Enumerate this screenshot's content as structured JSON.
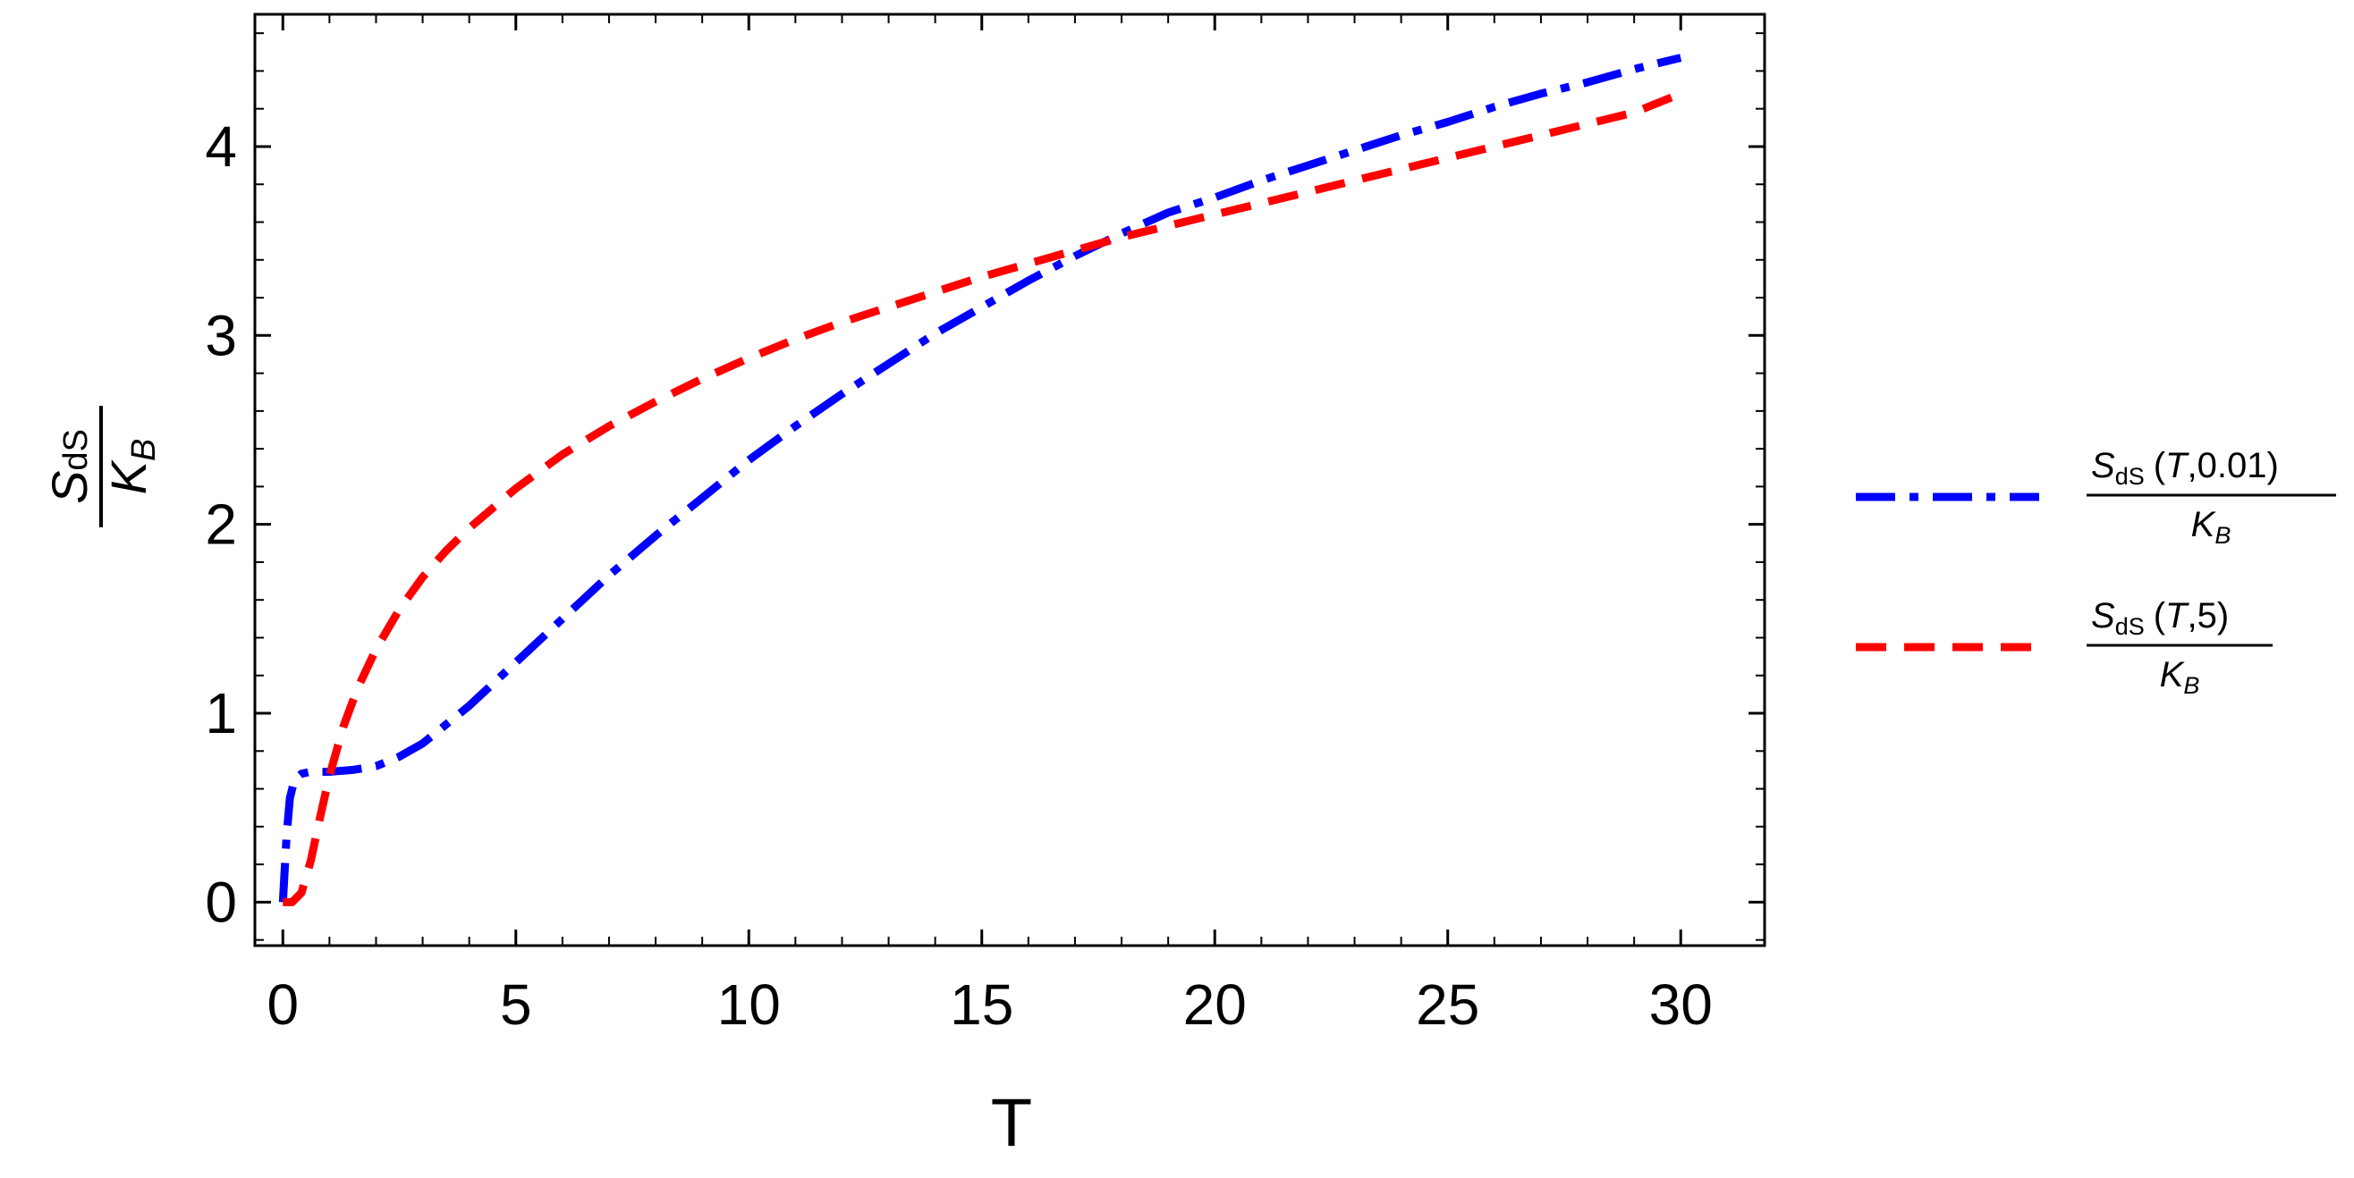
{
  "chart_data": {
    "type": "line",
    "xlabel": "T",
    "ylabel": {
      "main": "S",
      "sub": "dS",
      "den_main": "K",
      "den_sub": "B"
    },
    "xlim": [
      -0.6,
      31.8
    ],
    "ylim": [
      -0.23,
      4.7
    ],
    "x_ticks": [
      0,
      5,
      10,
      15,
      20,
      25,
      30
    ],
    "y_ticks": [
      0,
      1,
      2,
      3,
      4
    ],
    "grid": false,
    "legend_position": "right",
    "series": [
      {
        "name_main": "S",
        "name_sub": "dS",
        "name_args": "(",
        "name_T": "T",
        "name_rest": ",0.01)",
        "name_den_main": "K",
        "name_den_sub": "B",
        "color": "#0000ff",
        "dash": "dashdot",
        "x": [
          0,
          0.08,
          0.15,
          0.25,
          0.4,
          0.6,
          1,
          1.5,
          2,
          2.5,
          3,
          4,
          5,
          6,
          7,
          8,
          9,
          10,
          11,
          12,
          13,
          14,
          15,
          16,
          17,
          18,
          19,
          20,
          21,
          22,
          23,
          24,
          25,
          26,
          27,
          28,
          29,
          30
        ],
        "y": [
          0,
          0.35,
          0.55,
          0.65,
          0.68,
          0.69,
          0.69,
          0.7,
          0.72,
          0.77,
          0.84,
          1.04,
          1.27,
          1.5,
          1.73,
          1.94,
          2.14,
          2.34,
          2.52,
          2.69,
          2.85,
          3.01,
          3.15,
          3.29,
          3.42,
          3.54,
          3.65,
          3.73,
          3.82,
          3.9,
          3.98,
          4.06,
          4.13,
          4.21,
          4.28,
          4.34,
          4.41,
          4.47
        ]
      },
      {
        "name_main": "S",
        "name_sub": "dS",
        "name_args": "(",
        "name_T": "T",
        "name_rest": ",5)",
        "name_den_main": "K",
        "name_den_sub": "B",
        "color": "#ff0000",
        "dash": "dashed",
        "x": [
          0,
          0.2,
          0.4,
          0.6,
          0.8,
          1,
          1.3,
          1.6,
          2,
          2.5,
          3,
          3.5,
          4,
          5,
          6,
          7,
          8,
          9,
          10,
          11,
          12,
          13,
          14,
          15,
          16,
          17,
          18,
          19,
          20,
          21,
          22,
          23,
          24,
          25,
          26,
          27,
          28,
          29,
          30
        ],
        "y": [
          0,
          0.0,
          0.05,
          0.22,
          0.45,
          0.67,
          0.93,
          1.13,
          1.34,
          1.55,
          1.72,
          1.86,
          1.98,
          2.19,
          2.37,
          2.52,
          2.65,
          2.77,
          2.88,
          2.98,
          3.07,
          3.15,
          3.23,
          3.31,
          3.38,
          3.45,
          3.52,
          3.58,
          3.64,
          3.7,
          3.76,
          3.82,
          3.88,
          3.94,
          4.0,
          4.06,
          4.12,
          4.18,
          4.28
        ]
      }
    ]
  }
}
